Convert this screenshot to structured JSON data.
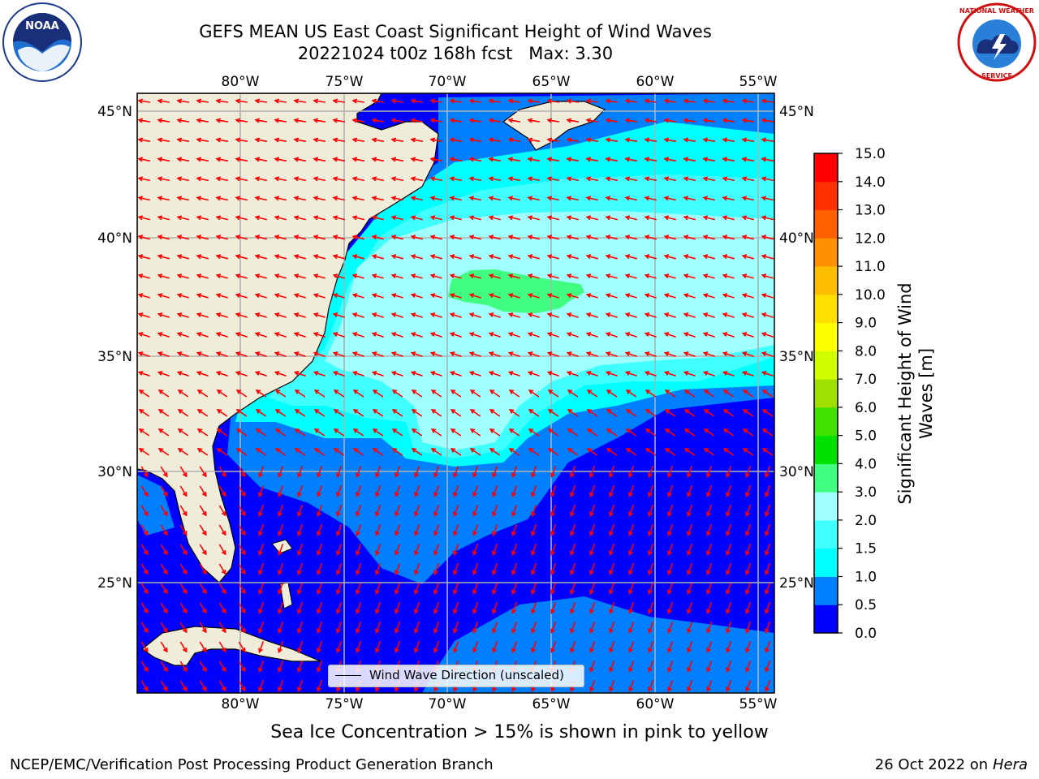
{
  "header": {
    "title_line1": "GEFS MEAN US East Coast Significant Height of Wind Waves",
    "title_line2": "20221024 t00z 168h fcst   Max: 3.30"
  },
  "logos": {
    "left": {
      "name": "noaa-logo",
      "text": "NOAA",
      "ring_text": "NATIONAL OCEANIC AND ATMOSPHERIC ADMINISTRATION · U.S. DEPARTMENT OF COMMERCE"
    },
    "right": {
      "name": "nws-logo",
      "ring_text": "NATIONAL WEATHER SERVICE"
    }
  },
  "map": {
    "lon_labels": [
      "80°W",
      "75°W",
      "70°W",
      "65°W",
      "60°W",
      "55°W"
    ],
    "lat_labels": [
      "45°N",
      "40°N",
      "35°N",
      "30°N",
      "25°N"
    ],
    "arrow_color": "#ff0000",
    "land_color": "#efedda",
    "legend": {
      "label": "Wind Wave Direction (unscaled)"
    }
  },
  "colorbar": {
    "title_line1": "Significant Height of Wind",
    "title_line2": "Waves [m]",
    "ticks": [
      "0.0",
      "0.5",
      "1.0",
      "1.5",
      "2.0",
      "3.0",
      "4.0",
      "5.0",
      "6.0",
      "7.0",
      "8.0",
      "9.0",
      "10.0",
      "11.0",
      "12.0",
      "13.0",
      "14.0",
      "15.0"
    ],
    "colors": [
      "#0000ff",
      "#0080ff",
      "#00ffff",
      "#40ffff",
      "#a0ffff",
      "#40ff80",
      "#00e000",
      "#40e000",
      "#a0e000",
      "#d0ff00",
      "#ffff00",
      "#ffe000",
      "#ffbf00",
      "#ff9000",
      "#ff6000",
      "#ff3000",
      "#ff0000"
    ]
  },
  "notes": {
    "ice": "Sea Ice Concentration > 15% is shown in pink to yellow"
  },
  "footer": {
    "left": "NCEP/EMC/Verification Post Processing Product Generation Branch",
    "right_date": "26 Oct 2022 on ",
    "right_host": "Hera"
  }
}
